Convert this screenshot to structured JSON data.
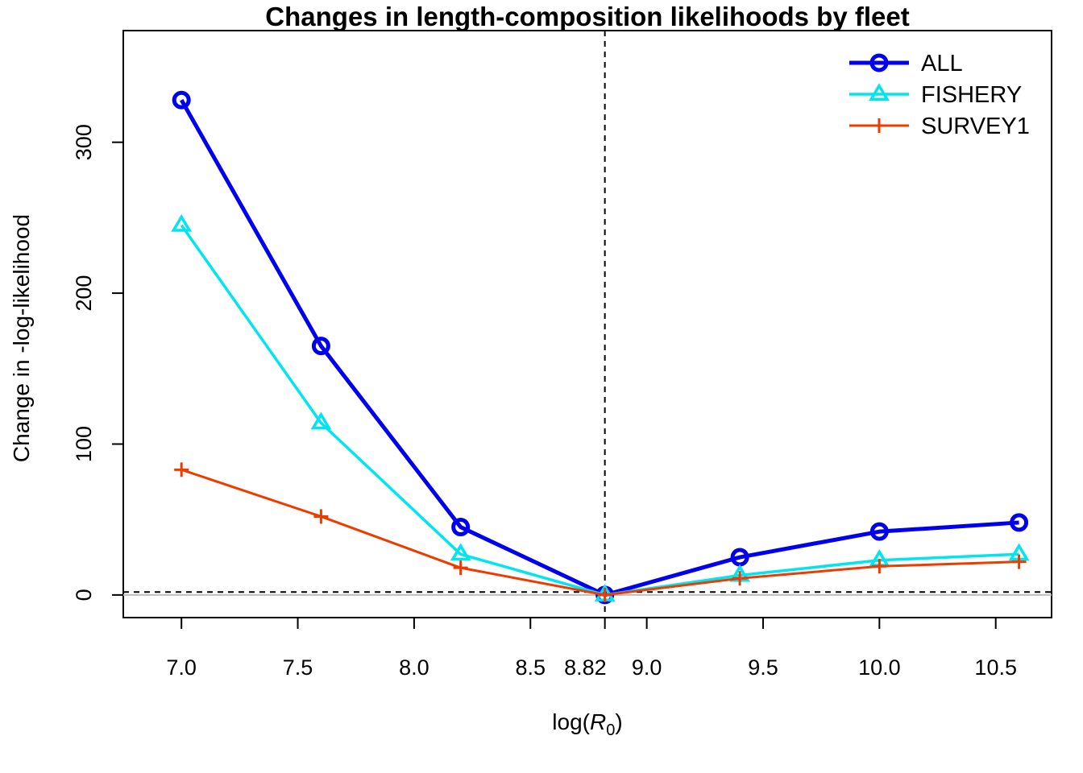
{
  "chart_data": {
    "type": "line",
    "title": "Changes in length-composition likelihoods by fleet",
    "xlabel_prefix": "log(",
    "xlabel_var": "R",
    "xlabel_sub": "0",
    "xlabel_suffix": ")",
    "ylabel": "Change in -log-likelihood",
    "xlim": [
      6.75,
      10.74
    ],
    "ylim": [
      -15,
      374
    ],
    "x_ticks": [
      7.0,
      7.5,
      8.0,
      8.5,
      9.0,
      9.5,
      10.0,
      10.5
    ],
    "x_tick_labels": [
      "7.0",
      "7.5",
      "8.0",
      "8.5",
      "9.0",
      "9.5",
      "10.0",
      "10.5"
    ],
    "mle_x": 8.82,
    "mle_label": "8.82",
    "y_ticks": [
      0,
      100,
      200,
      300
    ],
    "y_tick_labels": [
      "0",
      "100",
      "200",
      "300"
    ],
    "threshold_y": 1.92,
    "x": [
      7.0,
      7.6,
      8.2,
      8.82,
      9.4,
      10.0,
      10.6
    ],
    "series": [
      {
        "name": "ALL",
        "color": "#0000ee",
        "marker": "circle",
        "values": [
          328,
          165,
          45,
          0,
          25,
          42,
          48
        ]
      },
      {
        "name": "FISHERY",
        "color": "#00e5ee",
        "marker": "triangle",
        "values": [
          245,
          114,
          27,
          0,
          13,
          23,
          27
        ]
      },
      {
        "name": "SURVEY1",
        "color": "#ee3b00",
        "marker": "plus",
        "values": [
          83,
          52,
          18,
          0,
          11,
          19,
          22
        ]
      }
    ],
    "legend_position": "top-right",
    "grid": false
  }
}
